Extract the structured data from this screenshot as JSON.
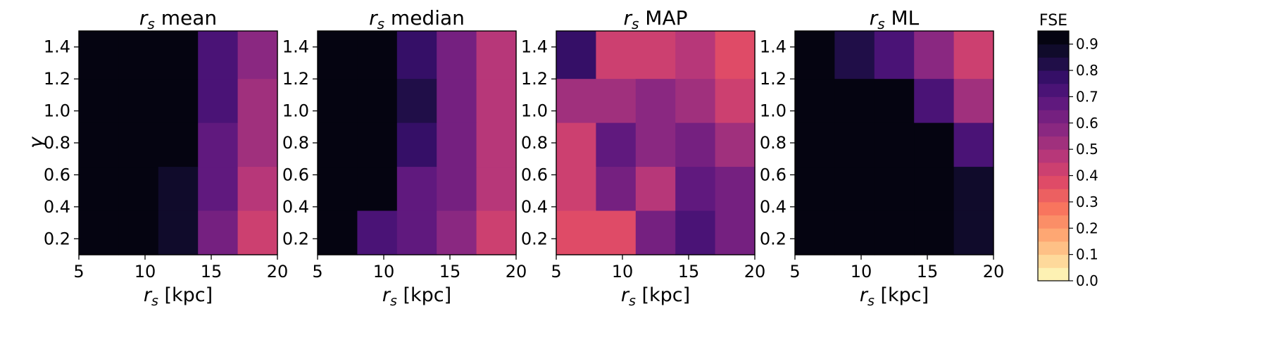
{
  "chart_data": {
    "type": "heatmap",
    "shared": {
      "x_edges": [
        5,
        8,
        11,
        14,
        17,
        20
      ],
      "x_ticks": [
        5,
        10,
        15,
        20
      ],
      "x_tick_labels": [
        "5",
        "10",
        "15",
        "20"
      ],
      "y_edges": [
        0.1,
        0.375,
        0.65,
        0.925,
        1.2,
        1.5
      ],
      "y_ticks": [
        0.2,
        0.4,
        0.6,
        0.8,
        1.0,
        1.2,
        1.4
      ],
      "y_tick_labels": [
        "0.2",
        "0.4",
        "0.6",
        "0.8",
        "1.0",
        "1.2",
        "1.4"
      ],
      "xlim": [
        5,
        20
      ],
      "ylim": [
        0.1,
        1.5
      ],
      "xlabel_symbol": "r",
      "xlabel_sub": "s",
      "xlabel_unit": " [kpc]",
      "ylabel": "γ",
      "title_symbol": "r",
      "title_sub": "s"
    },
    "panels": [
      {
        "title_suffix": " mean",
        "values": [
          [
            0.96,
            0.96,
            0.96,
            0.72,
            0.55
          ],
          [
            0.96,
            0.96,
            0.96,
            0.72,
            0.5
          ],
          [
            0.96,
            0.96,
            0.95,
            0.66,
            0.5
          ],
          [
            0.96,
            0.96,
            0.86,
            0.66,
            0.45
          ],
          [
            0.96,
            0.96,
            0.86,
            0.62,
            0.42
          ]
        ]
      },
      {
        "title_suffix": " median",
        "values": [
          [
            0.96,
            0.96,
            0.78,
            0.62,
            0.48
          ],
          [
            0.96,
            0.96,
            0.84,
            0.62,
            0.48
          ],
          [
            0.96,
            0.96,
            0.78,
            0.62,
            0.48
          ],
          [
            0.96,
            0.96,
            0.66,
            0.62,
            0.48
          ],
          [
            0.96,
            0.72,
            0.66,
            0.57,
            0.41
          ]
        ]
      },
      {
        "title_suffix": " MAP",
        "values": [
          [
            0.78,
            0.41,
            0.44,
            0.47,
            0.35
          ],
          [
            0.53,
            0.53,
            0.57,
            0.51,
            0.4
          ],
          [
            0.44,
            0.65,
            0.58,
            0.6,
            0.5
          ],
          [
            0.44,
            0.6,
            0.47,
            0.66,
            0.63
          ],
          [
            0.36,
            0.36,
            0.6,
            0.74,
            0.64
          ]
        ]
      },
      {
        "title_suffix": " ML",
        "values": [
          [
            0.96,
            0.82,
            0.7,
            0.56,
            0.42
          ],
          [
            0.96,
            0.96,
            0.96,
            0.74,
            0.5
          ],
          [
            0.96,
            0.96,
            0.96,
            0.9,
            0.74
          ],
          [
            0.96,
            0.96,
            0.96,
            0.96,
            0.86
          ],
          [
            0.96,
            0.96,
            0.96,
            0.96,
            0.86
          ]
        ]
      }
    ],
    "colorbar": {
      "title": "FSE",
      "range": [
        0.0,
        0.95
      ],
      "levels": 19,
      "ticks": [
        0.0,
        0.1,
        0.2,
        0.3,
        0.4,
        0.5,
        0.6,
        0.7,
        0.8,
        0.9
      ],
      "tick_labels": [
        "0.0",
        "0.1",
        "0.2",
        "0.3",
        "0.4",
        "0.5",
        "0.6",
        "0.7",
        "0.8",
        "0.9"
      ],
      "colormap": "magma"
    }
  }
}
